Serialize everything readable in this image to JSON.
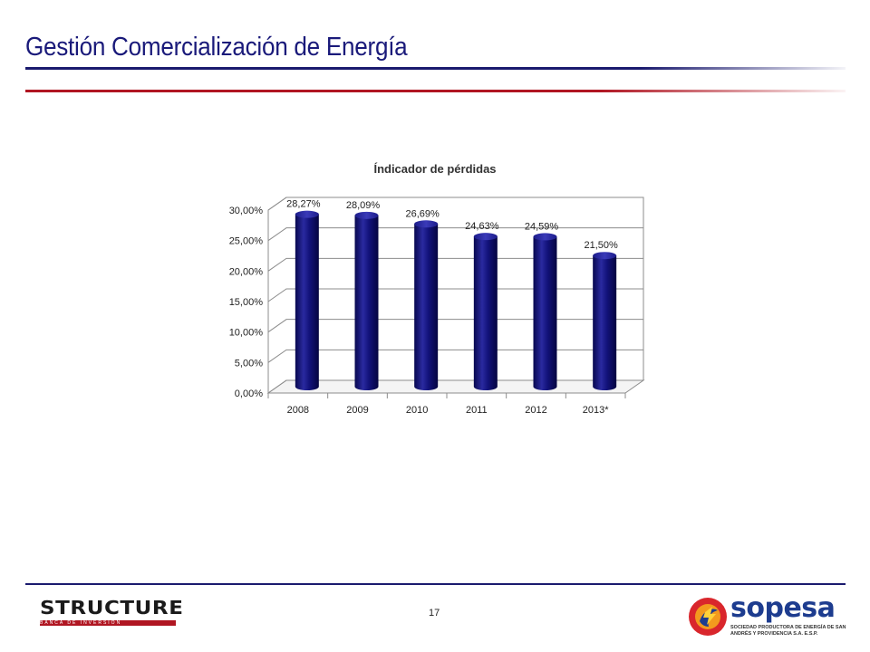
{
  "slide": {
    "title": "Gestión Comercialización de Energía",
    "page_number": "17"
  },
  "colors": {
    "title": "#1a1a7a",
    "rule_navy": "#1a1a6e",
    "rule_red": "#b01622",
    "bar": "#0d0d6b",
    "bar_highlight": "#2a2aa0"
  },
  "logos": {
    "structure": {
      "word": "STRUCTURE",
      "tagline": "BANCA DE INVERSIÓN"
    },
    "sopesa": {
      "word": "sopesa",
      "tagline": "SOCIEDAD PRODUCTORA DE ENERGÍA DE SAN ANDRÉS Y PROVIDENCIA S.A. E.S.P."
    }
  },
  "chart_data": {
    "type": "bar",
    "title": "Índicador de pérdidas",
    "xlabel": "",
    "ylabel": "",
    "categories": [
      "2008",
      "2009",
      "2010",
      "2011",
      "2012",
      "2013*"
    ],
    "values": [
      28.27,
      28.09,
      26.69,
      24.63,
      24.59,
      21.5
    ],
    "data_labels": [
      "28,27%",
      "28,09%",
      "26,69%",
      "24,63%",
      "24,59%",
      "21,50%"
    ],
    "y_ticks": [
      "0,00%",
      "5,00%",
      "10,00%",
      "15,00%",
      "20,00%",
      "25,00%",
      "30,00%"
    ],
    "ylim": [
      0,
      30
    ],
    "grid": true,
    "legend": "none",
    "style": "3d-cylinder"
  }
}
